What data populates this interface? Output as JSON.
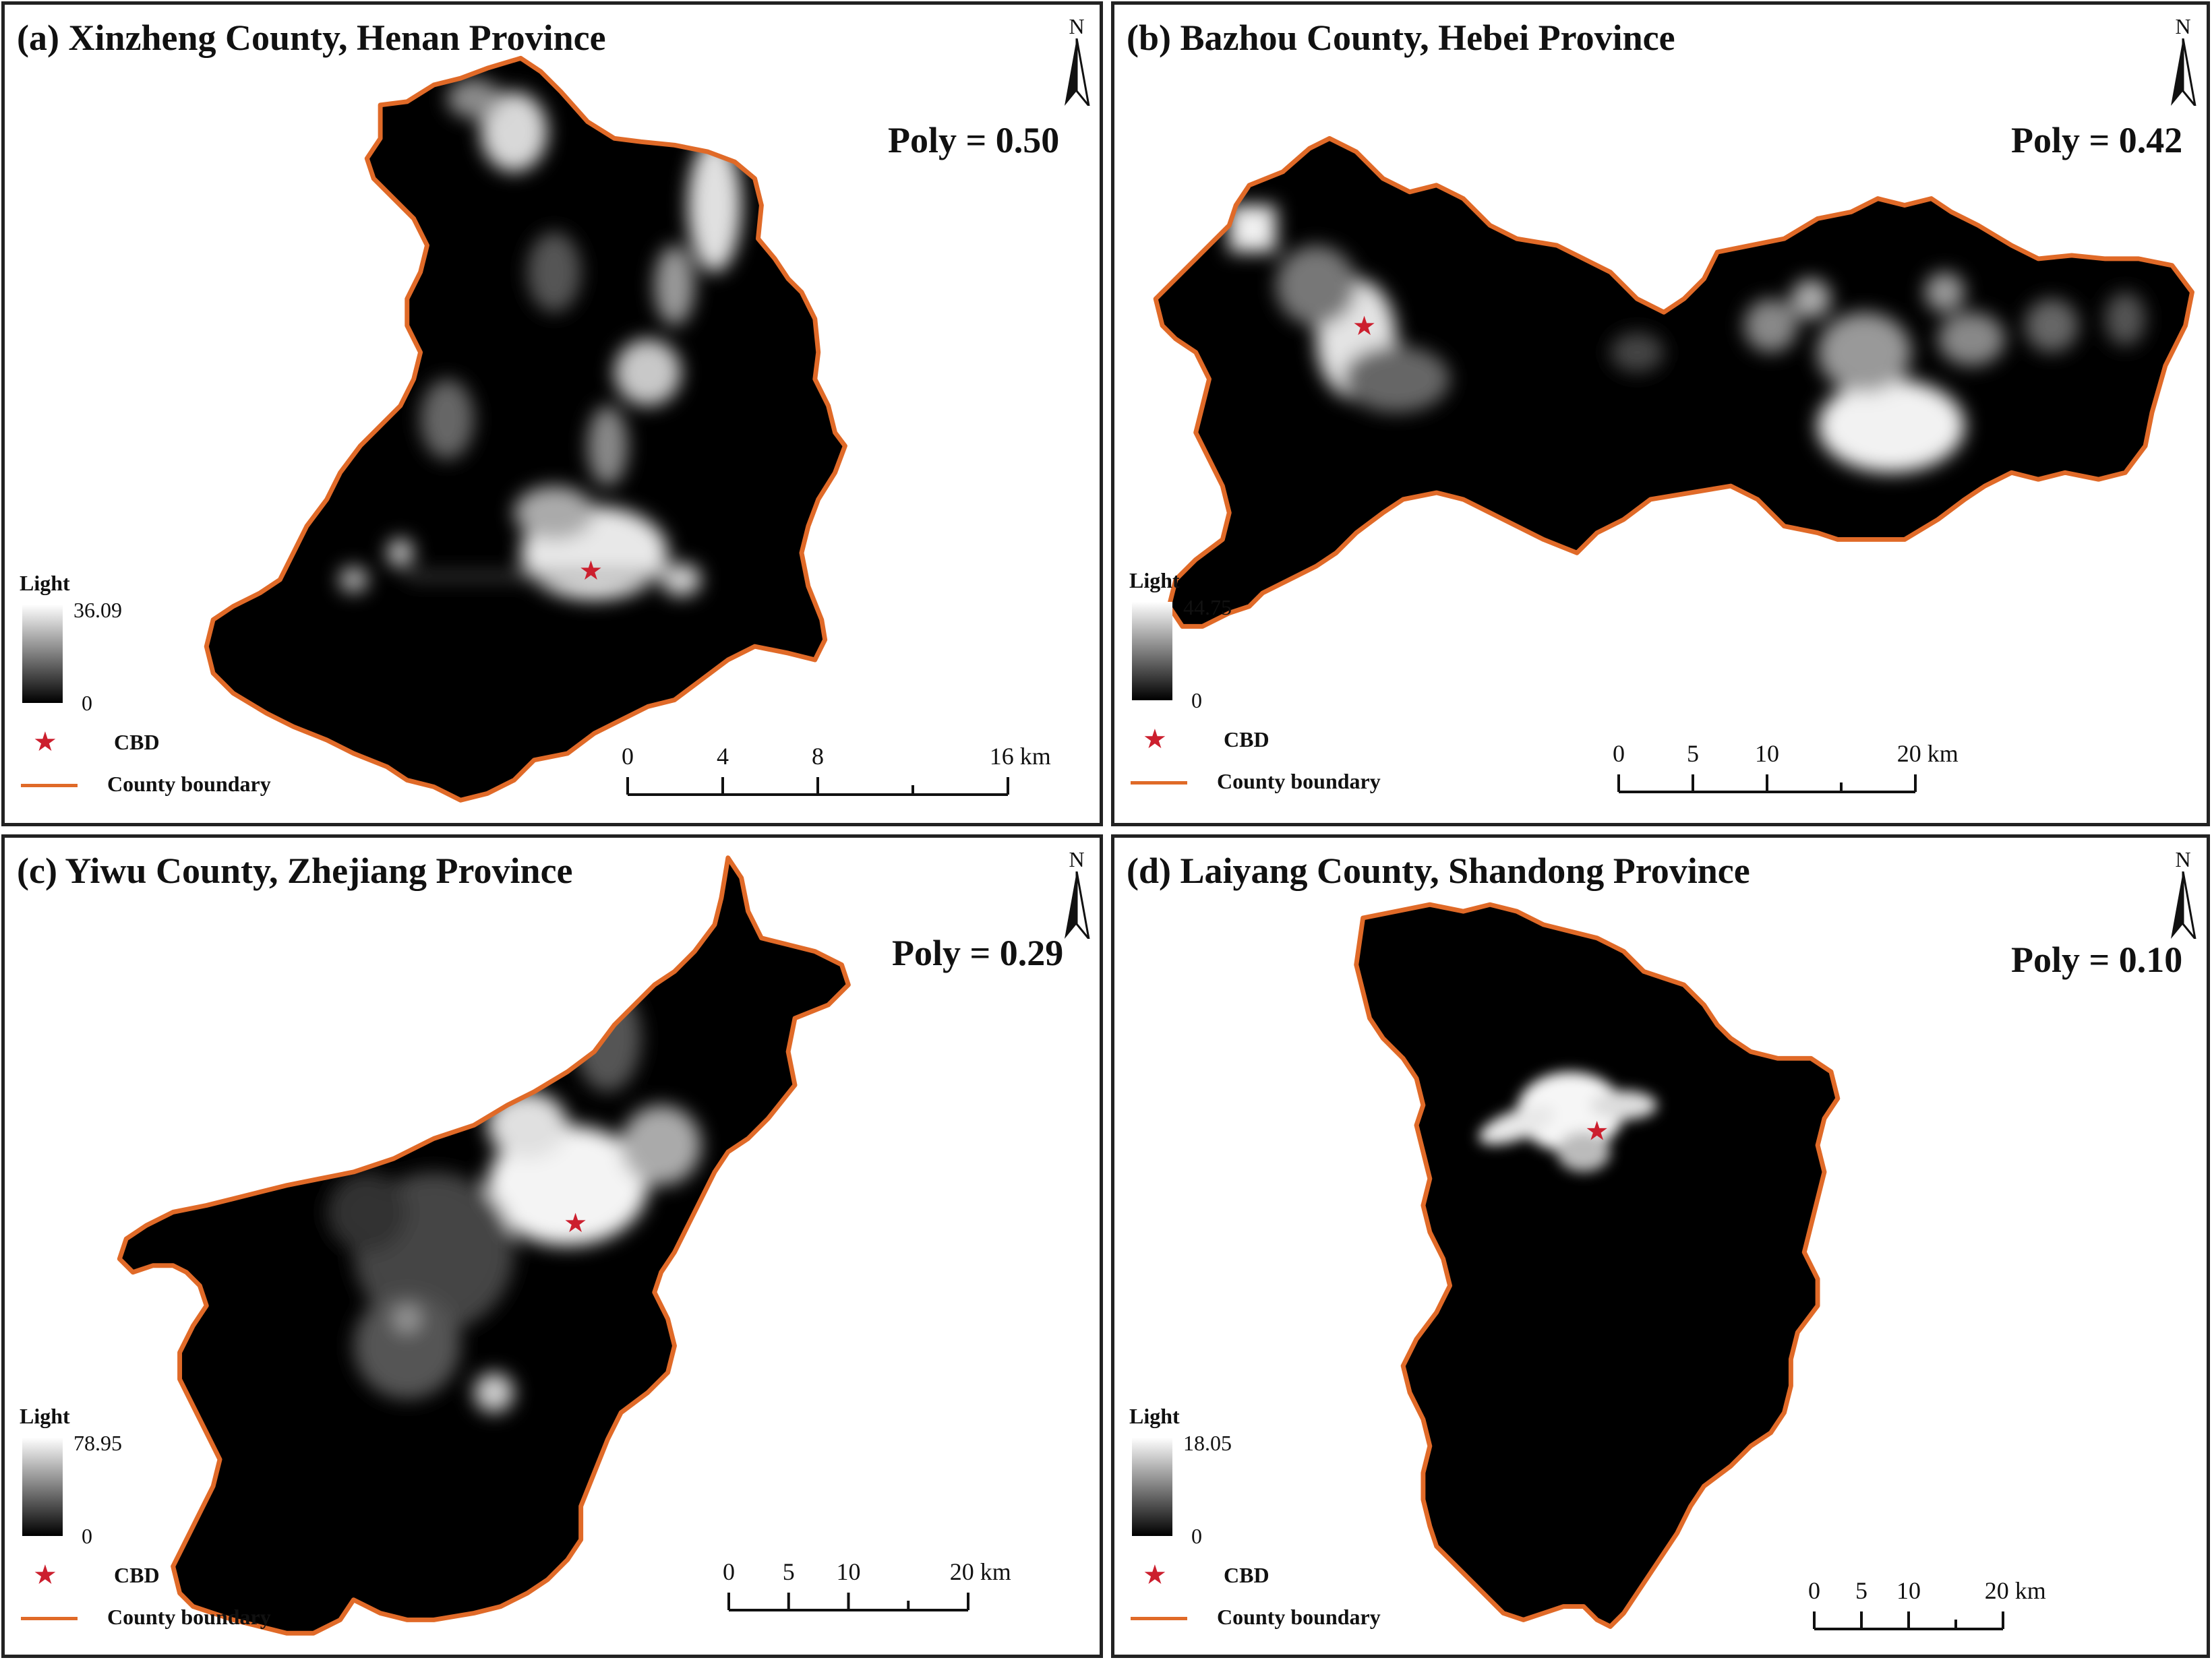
{
  "panels": [
    {
      "id": "a",
      "title": "(a) Xinzheng County, Henan Province",
      "poly_label": "Poly = 0.50",
      "legend": {
        "title": "Light",
        "max": "36.09",
        "min": "0",
        "cbd_label": "CBD",
        "boundary_label": "County boundary"
      },
      "north": "N",
      "scale": {
        "ticks": [
          "0",
          "4",
          "8",
          "16 km"
        ],
        "values": [
          0,
          4,
          8,
          16
        ],
        "unit": "km"
      }
    },
    {
      "id": "b",
      "title": "(b) Bazhou County, Hebei Province",
      "poly_label": "Poly = 0.42",
      "legend": {
        "title": "Light",
        "max": "44.75",
        "min": "0",
        "cbd_label": "CBD",
        "boundary_label": "County boundary"
      },
      "north": "N",
      "scale": {
        "ticks": [
          "0",
          "5",
          "10",
          "20 km"
        ],
        "values": [
          0,
          5,
          10,
          20
        ],
        "unit": "km"
      }
    },
    {
      "id": "c",
      "title": "(c) Yiwu County, Zhejiang Province",
      "poly_label": "Poly = 0.29",
      "legend": {
        "title": "Light",
        "max": "78.95",
        "min": "0",
        "cbd_label": "CBD",
        "boundary_label": "County boundary"
      },
      "north": "N",
      "scale": {
        "ticks": [
          "0",
          "5",
          "10",
          "20 km"
        ],
        "values": [
          0,
          5,
          10,
          20
        ],
        "unit": "km"
      }
    },
    {
      "id": "d",
      "title": "(d) Laiyang County, Shandong Province",
      "poly_label": "Poly = 0.10",
      "legend": {
        "title": "Light",
        "max": "18.05",
        "min": "0",
        "cbd_label": "CBD",
        "boundary_label": "County boundary"
      },
      "north": "N",
      "scale": {
        "ticks": [
          "0",
          "5",
          "10",
          "20 km"
        ],
        "values": [
          0,
          5,
          10,
          20
        ],
        "unit": "km"
      }
    }
  ],
  "colors": {
    "boundary": "#e06a28",
    "cbd_star": "#cc1f2e",
    "background": "#000000",
    "light_max": "#ffffff"
  },
  "icons": {
    "north_arrow": "north-arrow-icon",
    "cbd": "star-icon"
  }
}
